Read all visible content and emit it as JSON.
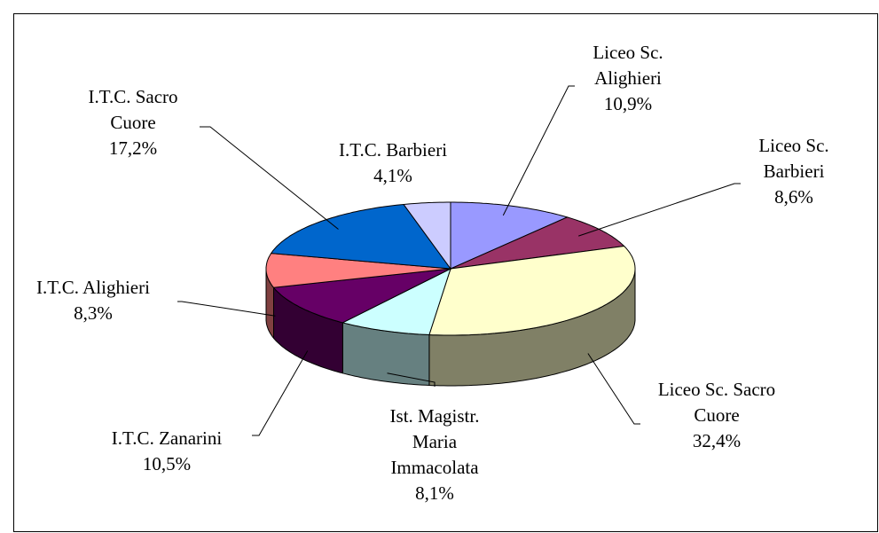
{
  "chart_data": {
    "type": "pie3d",
    "categories": [
      "Liceo Sc. Alighieri",
      "Liceo Sc. Barbieri",
      "Liceo Sc. Sacro Cuore",
      "Ist. Magistr. Maria Immacolata",
      "I.T.C. Zanarini",
      "I.T.C. Alighieri",
      "I.T.C. Sacro Cuore",
      "I.T.C. Barbieri"
    ],
    "values": [
      10.9,
      8.6,
      32.4,
      8.1,
      10.5,
      8.3,
      17.2,
      4.1
    ],
    "value_labels": [
      "10,9%",
      "8,6%",
      "32,4%",
      "8,1%",
      "10,5%",
      "8,3%",
      "17,2%",
      "4,1%"
    ],
    "colors": [
      "#9999ff",
      "#993366",
      "#ffffcc",
      "#ccffff",
      "#660066",
      "#ff8080",
      "#0066cc",
      "#ccccff"
    ]
  }
}
